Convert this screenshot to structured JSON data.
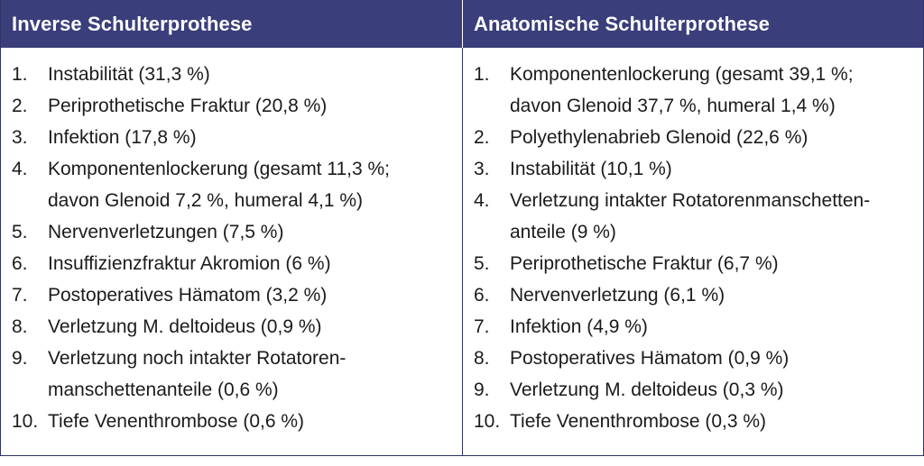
{
  "headers": {
    "left": "Inverse Schulterprothese",
    "right": "Anatomische Schulterprothese"
  },
  "left_items": [
    {
      "num": "1.",
      "lines": [
        "Instabilität (31,3 %)"
      ]
    },
    {
      "num": "2.",
      "lines": [
        "Periprothetische Fraktur (20,8 %)"
      ]
    },
    {
      "num": "3.",
      "lines": [
        "Infektion (17,8 %)"
      ]
    },
    {
      "num": "4.",
      "lines": [
        "Komponentenlockerung (gesamt 11,3 %;",
        "davon Glenoid 7,2 %, humeral 4,1 %)"
      ]
    },
    {
      "num": "5.",
      "lines": [
        "Nervenverletzungen (7,5 %)"
      ]
    },
    {
      "num": "6.",
      "lines": [
        "Insuffizienzfraktur Akromion (6 %)"
      ]
    },
    {
      "num": "7.",
      "lines": [
        "Postoperatives Hämatom (3,2 %)"
      ]
    },
    {
      "num": "8.",
      "lines": [
        "Verletzung M. deltoideus (0,9 %)"
      ]
    },
    {
      "num": "9.",
      "lines": [
        "Verletzung noch intakter Rotatoren-",
        "manschettenanteile (0,6 %)"
      ]
    },
    {
      "num": "10.",
      "lines": [
        "Tiefe Venenthrombose (0,6 %)"
      ]
    }
  ],
  "right_items": [
    {
      "num": "1.",
      "lines": [
        "Komponentenlockerung (gesamt 39,1 %;",
        "davon Glenoid 37,7 %, humeral 1,4 %)"
      ]
    },
    {
      "num": "2.",
      "lines": [
        "Polyethylenabrieb Glenoid (22,6 %)"
      ]
    },
    {
      "num": "3.",
      "lines": [
        "Instabilität (10,1 %)"
      ]
    },
    {
      "num": "4.",
      "lines": [
        "Verletzung intakter Rotatorenmanschetten-",
        "anteile (9 %)"
      ]
    },
    {
      "num": "5.",
      "lines": [
        "Periprothetische Fraktur (6,7 %)"
      ]
    },
    {
      "num": "6.",
      "lines": [
        "Nervenverletzung (6,1 %)"
      ]
    },
    {
      "num": "7.",
      "lines": [
        "Infektion (4,9 %)"
      ]
    },
    {
      "num": "8.",
      "lines": [
        "Postoperatives Hämatom (0,9 %)"
      ]
    },
    {
      "num": "9.",
      "lines": [
        "Verletzung M. deltoideus (0,3 %)"
      ]
    },
    {
      "num": "10.",
      "lines": [
        "Tiefe Venenthrombose (0,3 %)"
      ]
    }
  ]
}
